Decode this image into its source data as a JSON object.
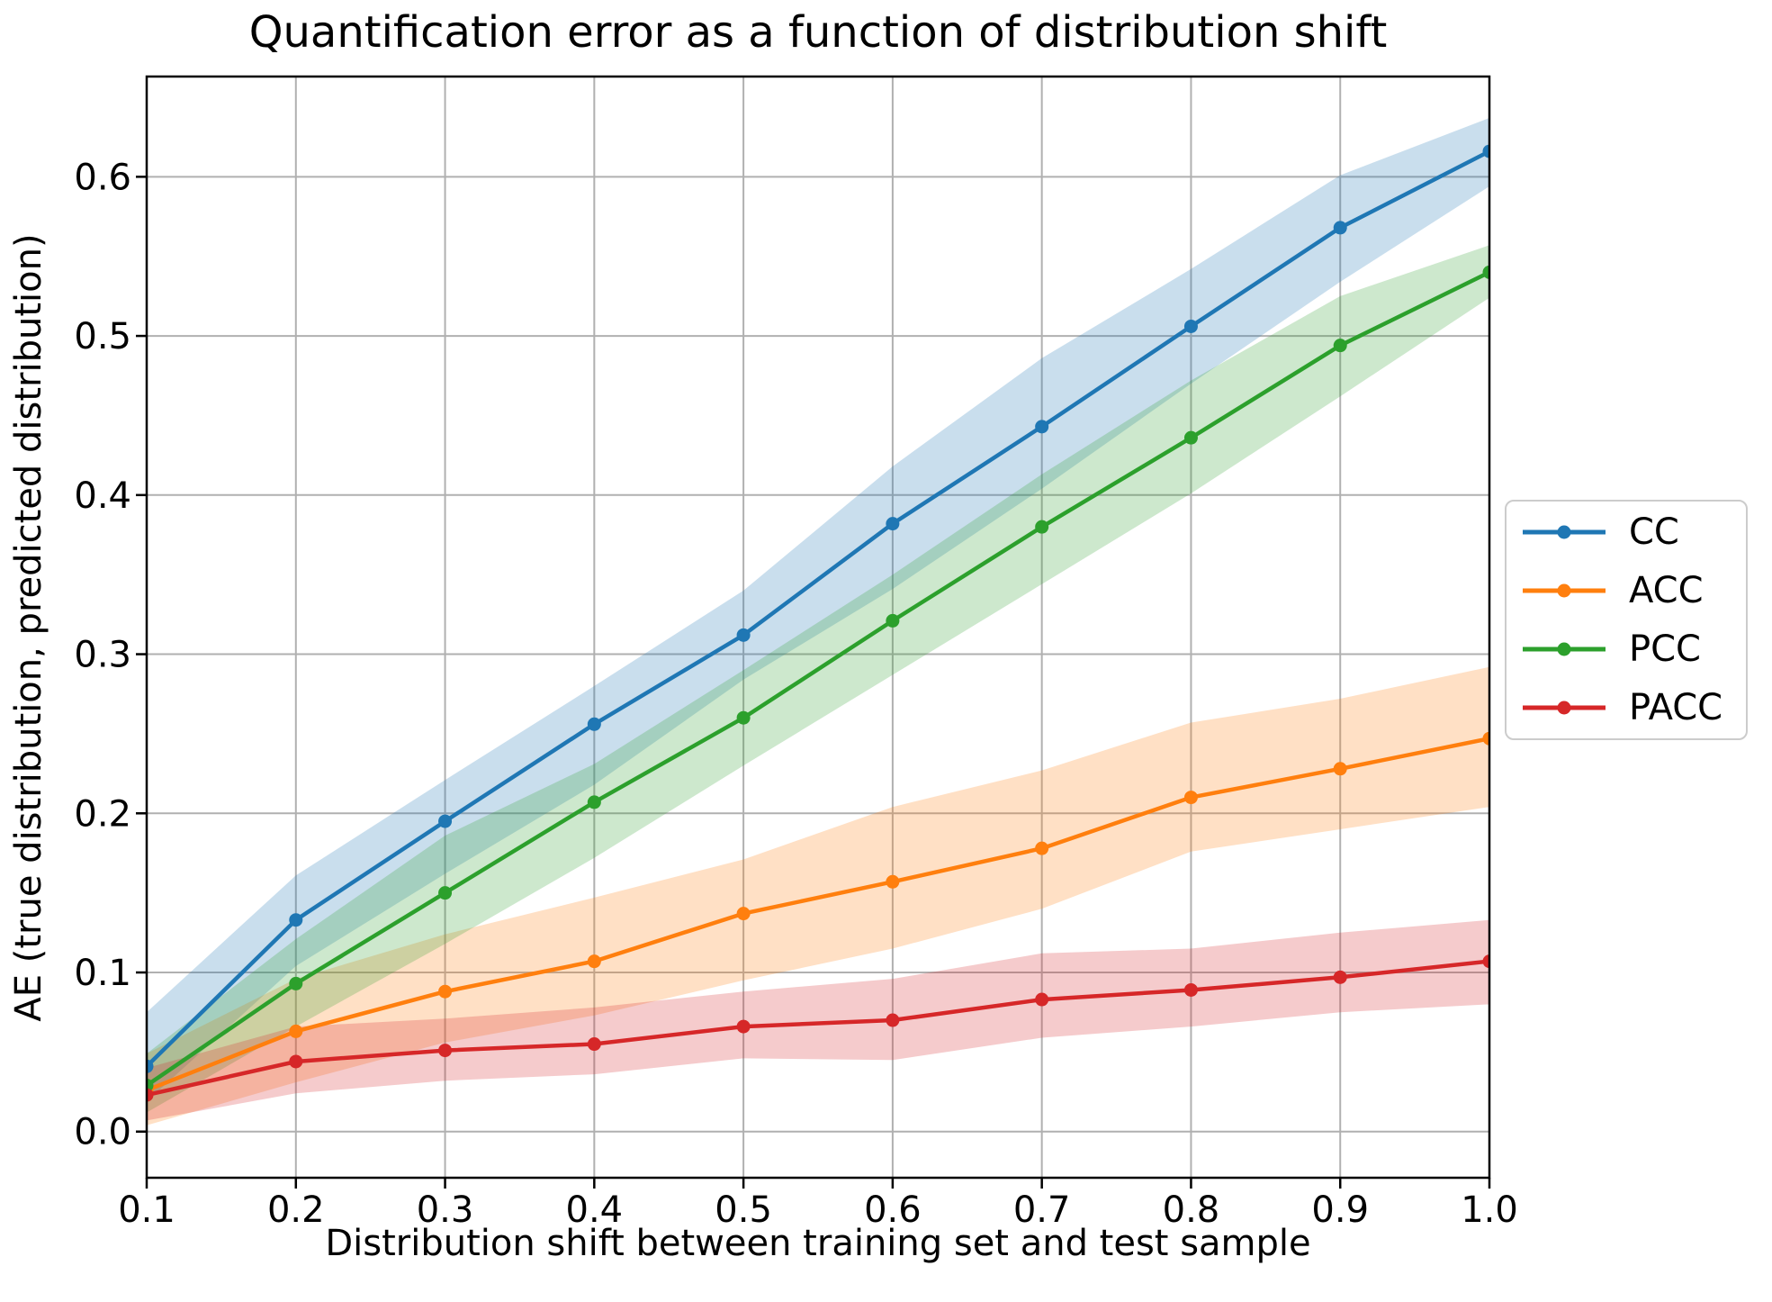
{
  "chart_data": {
    "type": "line",
    "title": "Quantification error as a function of distribution shift",
    "xlabel": "Distribution shift between training set and test sample",
    "ylabel": "AE (true distribution, predicted distribution)",
    "grid": true,
    "legend_position": "outside-right",
    "background_color": "#ffffff",
    "grid_color": "#b0b0b0",
    "spine_color": "#000000",
    "band_opacity": 0.24,
    "xlim": [
      0.1,
      1.0
    ],
    "ylim": [
      -0.029,
      0.663
    ],
    "x": [
      0.1,
      0.2,
      0.3,
      0.4,
      0.5,
      0.6,
      0.7,
      0.8,
      0.9,
      1.0
    ],
    "x_tick_labels": [
      "0.1",
      "0.2",
      "0.3",
      "0.4",
      "0.5",
      "0.6",
      "0.7",
      "0.8",
      "0.9",
      "1.0"
    ],
    "y_ticks": [
      0.0,
      0.1,
      0.2,
      0.3,
      0.4,
      0.5,
      0.6
    ],
    "y_tick_labels": [
      "0.0",
      "0.1",
      "0.2",
      "0.3",
      "0.4",
      "0.5",
      "0.6"
    ],
    "series": [
      {
        "name": "CC",
        "color": "#1f77b4",
        "values": [
          0.041,
          0.133,
          0.195,
          0.256,
          0.312,
          0.382,
          0.443,
          0.506,
          0.568,
          0.616
        ],
        "band_lo": [
          0.019,
          0.104,
          0.162,
          0.218,
          0.284,
          0.341,
          0.404,
          0.47,
          0.534,
          0.594
        ],
        "band_hi": [
          0.075,
          0.161,
          0.221,
          0.28,
          0.34,
          0.418,
          0.486,
          0.542,
          0.601,
          0.637
        ]
      },
      {
        "name": "ACC",
        "color": "#ff7f0e",
        "values": [
          0.026,
          0.063,
          0.088,
          0.107,
          0.137,
          0.157,
          0.178,
          0.21,
          0.228,
          0.247
        ],
        "band_lo": [
          0.004,
          0.031,
          0.056,
          0.073,
          0.095,
          0.115,
          0.14,
          0.176,
          0.19,
          0.204
        ],
        "band_hi": [
          0.049,
          0.096,
          0.124,
          0.147,
          0.171,
          0.204,
          0.227,
          0.257,
          0.272,
          0.292
        ]
      },
      {
        "name": "PCC",
        "color": "#2ca02c",
        "values": [
          0.029,
          0.093,
          0.15,
          0.207,
          0.26,
          0.321,
          0.38,
          0.436,
          0.494,
          0.54
        ],
        "band_lo": [
          0.012,
          0.066,
          0.118,
          0.172,
          0.23,
          0.287,
          0.344,
          0.401,
          0.462,
          0.524
        ],
        "band_hi": [
          0.049,
          0.121,
          0.186,
          0.231,
          0.29,
          0.35,
          0.413,
          0.472,
          0.525,
          0.557
        ]
      },
      {
        "name": "PACC",
        "color": "#d62728",
        "values": [
          0.023,
          0.044,
          0.051,
          0.055,
          0.066,
          0.07,
          0.083,
          0.089,
          0.097,
          0.107
        ],
        "band_lo": [
          0.007,
          0.024,
          0.032,
          0.036,
          0.046,
          0.045,
          0.059,
          0.066,
          0.075,
          0.08
        ],
        "band_hi": [
          0.04,
          0.066,
          0.071,
          0.078,
          0.088,
          0.096,
          0.112,
          0.115,
          0.125,
          0.133
        ]
      }
    ]
  }
}
